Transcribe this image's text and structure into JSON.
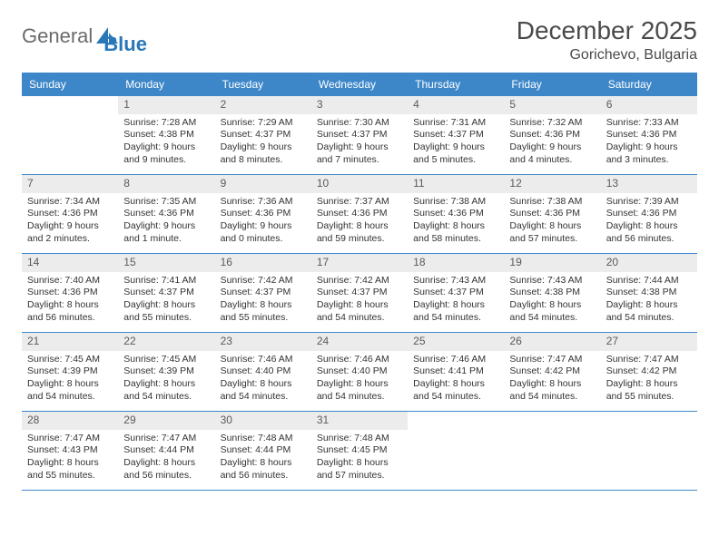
{
  "logo": {
    "text1": "General",
    "text2": "Blue"
  },
  "title": "December 2025",
  "location": "Gorichevo, Bulgaria",
  "colors": {
    "header_bg": "#3d87c9",
    "header_text": "#ffffff",
    "daynum_bg": "#ececec",
    "daynum_text": "#5a5a5a",
    "body_text": "#333333",
    "rule": "#3d87c9"
  },
  "weekdays": [
    "Sunday",
    "Monday",
    "Tuesday",
    "Wednesday",
    "Thursday",
    "Friday",
    "Saturday"
  ],
  "weeks": [
    [
      {
        "empty": true
      },
      {
        "n": "1",
        "sunrise": "Sunrise: 7:28 AM",
        "sunset": "Sunset: 4:38 PM",
        "daylight": "Daylight: 9 hours and 9 minutes."
      },
      {
        "n": "2",
        "sunrise": "Sunrise: 7:29 AM",
        "sunset": "Sunset: 4:37 PM",
        "daylight": "Daylight: 9 hours and 8 minutes."
      },
      {
        "n": "3",
        "sunrise": "Sunrise: 7:30 AM",
        "sunset": "Sunset: 4:37 PM",
        "daylight": "Daylight: 9 hours and 7 minutes."
      },
      {
        "n": "4",
        "sunrise": "Sunrise: 7:31 AM",
        "sunset": "Sunset: 4:37 PM",
        "daylight": "Daylight: 9 hours and 5 minutes."
      },
      {
        "n": "5",
        "sunrise": "Sunrise: 7:32 AM",
        "sunset": "Sunset: 4:36 PM",
        "daylight": "Daylight: 9 hours and 4 minutes."
      },
      {
        "n": "6",
        "sunrise": "Sunrise: 7:33 AM",
        "sunset": "Sunset: 4:36 PM",
        "daylight": "Daylight: 9 hours and 3 minutes."
      }
    ],
    [
      {
        "n": "7",
        "sunrise": "Sunrise: 7:34 AM",
        "sunset": "Sunset: 4:36 PM",
        "daylight": "Daylight: 9 hours and 2 minutes."
      },
      {
        "n": "8",
        "sunrise": "Sunrise: 7:35 AM",
        "sunset": "Sunset: 4:36 PM",
        "daylight": "Daylight: 9 hours and 1 minute."
      },
      {
        "n": "9",
        "sunrise": "Sunrise: 7:36 AM",
        "sunset": "Sunset: 4:36 PM",
        "daylight": "Daylight: 9 hours and 0 minutes."
      },
      {
        "n": "10",
        "sunrise": "Sunrise: 7:37 AM",
        "sunset": "Sunset: 4:36 PM",
        "daylight": "Daylight: 8 hours and 59 minutes."
      },
      {
        "n": "11",
        "sunrise": "Sunrise: 7:38 AM",
        "sunset": "Sunset: 4:36 PM",
        "daylight": "Daylight: 8 hours and 58 minutes."
      },
      {
        "n": "12",
        "sunrise": "Sunrise: 7:38 AM",
        "sunset": "Sunset: 4:36 PM",
        "daylight": "Daylight: 8 hours and 57 minutes."
      },
      {
        "n": "13",
        "sunrise": "Sunrise: 7:39 AM",
        "sunset": "Sunset: 4:36 PM",
        "daylight": "Daylight: 8 hours and 56 minutes."
      }
    ],
    [
      {
        "n": "14",
        "sunrise": "Sunrise: 7:40 AM",
        "sunset": "Sunset: 4:36 PM",
        "daylight": "Daylight: 8 hours and 56 minutes."
      },
      {
        "n": "15",
        "sunrise": "Sunrise: 7:41 AM",
        "sunset": "Sunset: 4:37 PM",
        "daylight": "Daylight: 8 hours and 55 minutes."
      },
      {
        "n": "16",
        "sunrise": "Sunrise: 7:42 AM",
        "sunset": "Sunset: 4:37 PM",
        "daylight": "Daylight: 8 hours and 55 minutes."
      },
      {
        "n": "17",
        "sunrise": "Sunrise: 7:42 AM",
        "sunset": "Sunset: 4:37 PM",
        "daylight": "Daylight: 8 hours and 54 minutes."
      },
      {
        "n": "18",
        "sunrise": "Sunrise: 7:43 AM",
        "sunset": "Sunset: 4:37 PM",
        "daylight": "Daylight: 8 hours and 54 minutes."
      },
      {
        "n": "19",
        "sunrise": "Sunrise: 7:43 AM",
        "sunset": "Sunset: 4:38 PM",
        "daylight": "Daylight: 8 hours and 54 minutes."
      },
      {
        "n": "20",
        "sunrise": "Sunrise: 7:44 AM",
        "sunset": "Sunset: 4:38 PM",
        "daylight": "Daylight: 8 hours and 54 minutes."
      }
    ],
    [
      {
        "n": "21",
        "sunrise": "Sunrise: 7:45 AM",
        "sunset": "Sunset: 4:39 PM",
        "daylight": "Daylight: 8 hours and 54 minutes."
      },
      {
        "n": "22",
        "sunrise": "Sunrise: 7:45 AM",
        "sunset": "Sunset: 4:39 PM",
        "daylight": "Daylight: 8 hours and 54 minutes."
      },
      {
        "n": "23",
        "sunrise": "Sunrise: 7:46 AM",
        "sunset": "Sunset: 4:40 PM",
        "daylight": "Daylight: 8 hours and 54 minutes."
      },
      {
        "n": "24",
        "sunrise": "Sunrise: 7:46 AM",
        "sunset": "Sunset: 4:40 PM",
        "daylight": "Daylight: 8 hours and 54 minutes."
      },
      {
        "n": "25",
        "sunrise": "Sunrise: 7:46 AM",
        "sunset": "Sunset: 4:41 PM",
        "daylight": "Daylight: 8 hours and 54 minutes."
      },
      {
        "n": "26",
        "sunrise": "Sunrise: 7:47 AM",
        "sunset": "Sunset: 4:42 PM",
        "daylight": "Daylight: 8 hours and 54 minutes."
      },
      {
        "n": "27",
        "sunrise": "Sunrise: 7:47 AM",
        "sunset": "Sunset: 4:42 PM",
        "daylight": "Daylight: 8 hours and 55 minutes."
      }
    ],
    [
      {
        "n": "28",
        "sunrise": "Sunrise: 7:47 AM",
        "sunset": "Sunset: 4:43 PM",
        "daylight": "Daylight: 8 hours and 55 minutes."
      },
      {
        "n": "29",
        "sunrise": "Sunrise: 7:47 AM",
        "sunset": "Sunset: 4:44 PM",
        "daylight": "Daylight: 8 hours and 56 minutes."
      },
      {
        "n": "30",
        "sunrise": "Sunrise: 7:48 AM",
        "sunset": "Sunset: 4:44 PM",
        "daylight": "Daylight: 8 hours and 56 minutes."
      },
      {
        "n": "31",
        "sunrise": "Sunrise: 7:48 AM",
        "sunset": "Sunset: 4:45 PM",
        "daylight": "Daylight: 8 hours and 57 minutes."
      },
      {
        "empty": true
      },
      {
        "empty": true
      },
      {
        "empty": true
      }
    ]
  ]
}
